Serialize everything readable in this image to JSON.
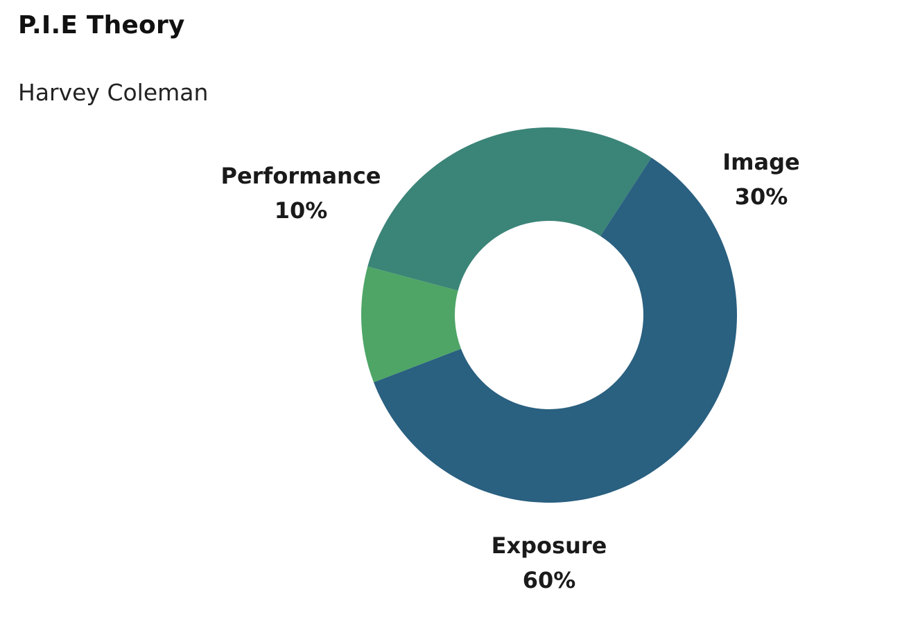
{
  "chart_data": {
    "type": "pie",
    "donut": true,
    "title": "P.I.E Theory",
    "subtitle": "Harvey Coleman",
    "slices": [
      {
        "label": "Image",
        "value": 30,
        "display": "30%",
        "color": "#3b8478"
      },
      {
        "label": "Exposure",
        "value": 60,
        "display": "60%",
        "color": "#2a6080"
      },
      {
        "label": "Performance",
        "value": 10,
        "display": "10%",
        "color": "#4ea566"
      }
    ],
    "legend": "none",
    "label_position": "outside"
  }
}
